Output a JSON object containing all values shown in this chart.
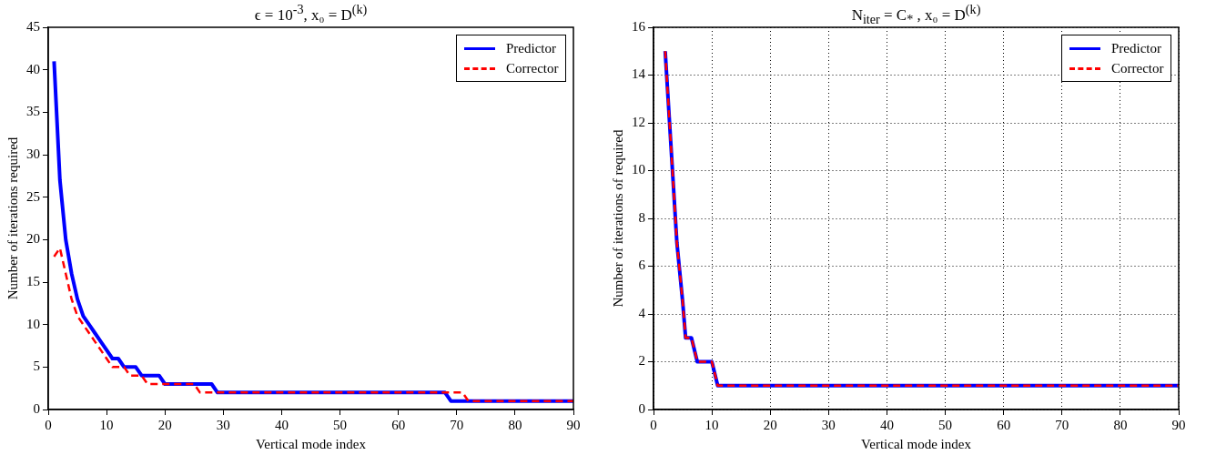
{
  "chart_data": [
    {
      "type": "line",
      "title": "ϵ = 10$^{-3}$, x₀ = D$^{(k)}$",
      "xlabel": "Vertical mode index",
      "ylabel": "Number of iterations required",
      "xlim": [
        0,
        90
      ],
      "xticks": [
        0,
        10,
        20,
        30,
        40,
        50,
        60,
        70,
        80,
        90
      ],
      "ylim": [
        0,
        45
      ],
      "yticks": [
        0,
        5,
        10,
        15,
        20,
        25,
        30,
        35,
        40,
        45
      ],
      "grid": false,
      "legend": "top right",
      "marker": "none",
      "series": [
        {
          "name": "Predictor",
          "color": "#0000ff",
          "line_style": "solid",
          "x": [
            1,
            2,
            3,
            4,
            5,
            6,
            7,
            8,
            9,
            10,
            11,
            12,
            13,
            15,
            16,
            19,
            20,
            28,
            29,
            68,
            69,
            90
          ],
          "values": [
            41,
            27,
            20,
            16,
            13,
            11,
            10,
            9,
            8,
            7,
            6,
            6,
            5,
            5,
            4,
            4,
            3,
            3,
            2,
            2,
            1,
            1
          ]
        },
        {
          "name": "Corrector",
          "color": "#ff0000",
          "line_style": "dashed",
          "x": [
            1,
            2,
            3,
            4,
            5,
            6,
            7,
            8,
            9,
            10,
            11,
            13,
            14,
            16,
            17,
            25,
            26,
            71,
            72,
            90
          ],
          "values": [
            18,
            19,
            16,
            13,
            11,
            10,
            9,
            8,
            7,
            6,
            5,
            5,
            4,
            4,
            3,
            3,
            2,
            2,
            1,
            1
          ]
        }
      ]
    },
    {
      "type": "line",
      "title": "N$_{iter}$ = C$_{*}$ , x₀ = D$^{(k)}$",
      "xlabel": "Vertical mode index",
      "ylabel": "Number of iterations of required",
      "xlim": [
        0,
        90
      ],
      "xticks": [
        0,
        10,
        20,
        30,
        40,
        50,
        60,
        70,
        80,
        90
      ],
      "ylim": [
        0,
        16
      ],
      "yticks": [
        0,
        2,
        4,
        6,
        8,
        10,
        12,
        14,
        16
      ],
      "grid": true,
      "legend": "top right",
      "marker": "none",
      "series": [
        {
          "name": "Predictor",
          "color": "#0000ff",
          "line_style": "solid",
          "x": [
            2,
            3,
            4,
            5,
            5.5,
            6.5,
            7.5,
            10,
            11,
            90
          ],
          "values": [
            15,
            11,
            7,
            4.5,
            3,
            3,
            2,
            2,
            1,
            1
          ]
        },
        {
          "name": "Corrector",
          "color": "#ff0000",
          "line_style": "dashed",
          "x": [
            2,
            3,
            4,
            5,
            5.5,
            6.5,
            7.5,
            10,
            11,
            90
          ],
          "values": [
            15,
            11,
            7,
            4.5,
            3,
            3,
            2,
            2,
            1,
            1
          ]
        }
      ]
    }
  ]
}
